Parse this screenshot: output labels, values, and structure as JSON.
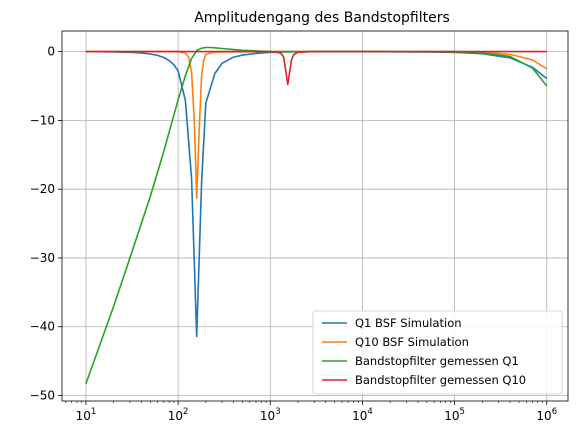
{
  "chart_data": {
    "type": "line",
    "title": "Amplitudengang des Bandstopfilters",
    "xlabel": "",
    "ylabel": "",
    "xscale": "log",
    "xlim": [
      5.5,
      1700000
    ],
    "ylim": [
      -50.8,
      3
    ],
    "grid": true,
    "legend_position": "lower-right",
    "x_ticks": [
      {
        "value": 10,
        "base": "10",
        "exp": "1"
      },
      {
        "value": 100,
        "base": "10",
        "exp": "2"
      },
      {
        "value": 1000,
        "base": "10",
        "exp": "3"
      },
      {
        "value": 10000,
        "base": "10",
        "exp": "4"
      },
      {
        "value": 100000,
        "base": "10",
        "exp": "5"
      },
      {
        "value": 1000000,
        "base": "10",
        "exp": "6"
      }
    ],
    "y_ticks": [
      {
        "value": 0,
        "label": "0"
      },
      {
        "value": -10,
        "label": "−10"
      },
      {
        "value": -20,
        "label": "−20"
      },
      {
        "value": -30,
        "label": "−30"
      },
      {
        "value": -40,
        "label": "−40"
      },
      {
        "value": -50,
        "label": "−50"
      }
    ],
    "series": [
      {
        "name": "Q1 BSF Simulation",
        "color": "#1f77b4",
        "x": [
          10,
          20,
          30,
          40,
          50,
          60,
          70,
          80,
          90,
          100,
          120,
          140,
          159,
          180,
          200,
          250,
          300,
          400,
          500,
          700,
          1000,
          1500,
          3000,
          10000,
          50000,
          100000,
          200000,
          400000,
          700000,
          1000000
        ],
        "y": [
          0,
          -0.05,
          -0.1,
          -0.2,
          -0.35,
          -0.55,
          -0.85,
          -1.3,
          -1.9,
          -2.8,
          -7.1,
          -18.5,
          -41.4,
          -19,
          -7.5,
          -3.2,
          -1.7,
          -0.8,
          -0.5,
          -0.25,
          -0.1,
          -0.05,
          0,
          0,
          -0.05,
          -0.1,
          -0.3,
          -0.9,
          -2.3,
          -3.9
        ]
      },
      {
        "name": "Q10 BSF Simulation",
        "color": "#ff7f0e",
        "x": [
          10,
          100,
          120,
          130,
          140,
          150,
          159,
          170,
          180,
          190,
          200,
          250,
          1000,
          10000,
          100000,
          200000,
          400000,
          700000,
          1000000
        ],
        "y": [
          0,
          0,
          -0.2,
          -0.8,
          -3,
          -10,
          -21.3,
          -11,
          -3.5,
          -1.2,
          -0.4,
          -0.05,
          0,
          0,
          0,
          -0.1,
          -0.4,
          -1.2,
          -2.5
        ]
      },
      {
        "name": "Bandstopfilter gemessen Q1",
        "color": "#2ca02c",
        "x": [
          10,
          20,
          30,
          50,
          70,
          100,
          120,
          140,
          160,
          180,
          200,
          220,
          250,
          300,
          400,
          500,
          700,
          1000,
          2000,
          10000,
          100000,
          200000,
          400000,
          700000,
          1000000
        ],
        "y": [
          -48.3,
          -37,
          -30,
          -21,
          -14.5,
          -7,
          -3.5,
          -1,
          0.2,
          0.5,
          0.6,
          0.6,
          0.55,
          0.45,
          0.3,
          0.2,
          0.1,
          0,
          0,
          0,
          -0.05,
          -0.2,
          -0.7,
          -2.4,
          -5
        ]
      },
      {
        "name": "Bandstopfilter gemessen Q10",
        "color": "#d62728",
        "x": [
          10,
          1000,
          1300,
          1400,
          1500,
          1550,
          1600,
          1700,
          1800,
          2000,
          3000,
          10000,
          100000,
          1000000
        ],
        "y": [
          0,
          0,
          -0.2,
          -0.8,
          -3.5,
          -4.8,
          -3.5,
          -1.2,
          -0.4,
          -0.1,
          0,
          0,
          0,
          0
        ]
      }
    ]
  }
}
